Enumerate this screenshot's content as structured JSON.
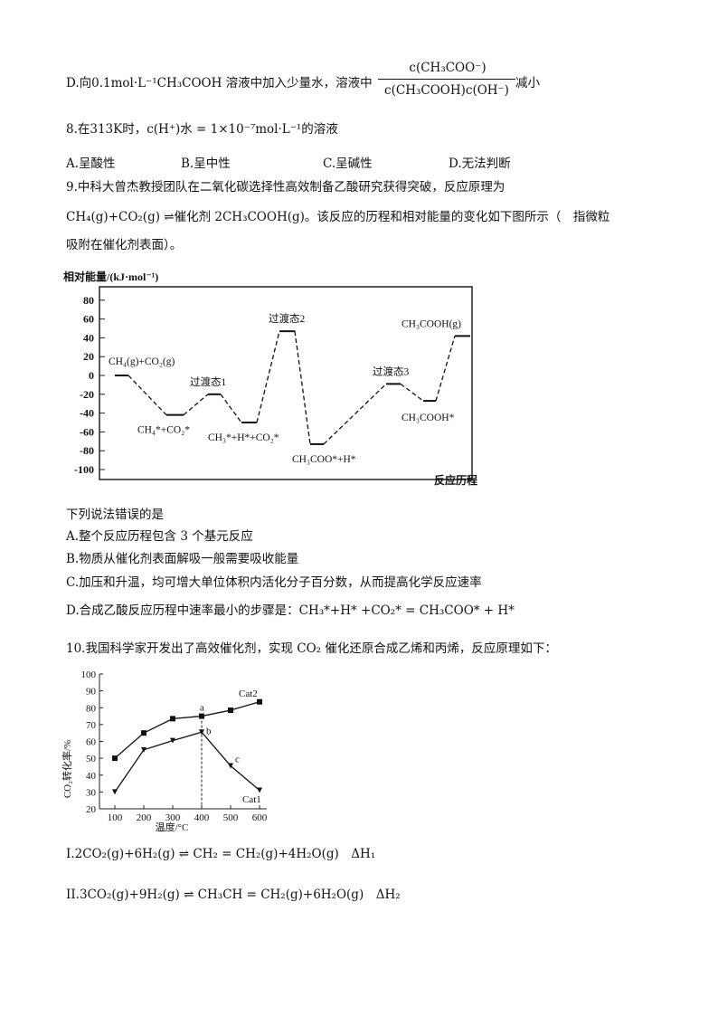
{
  "q7d": {
    "prefix": "D.向0.1mol·L⁻¹CH₃COOH 溶液中加入少量水，溶液中",
    "numerator": "c(CH₃COO⁻)",
    "denominator": "c(CH₃COOH)c(OH⁻)",
    "suffix": "减小"
  },
  "q8": {
    "stem": "8.在313K时，c(H⁺)水 = 1×10⁻⁷mol·L⁻¹的溶液",
    "options": [
      "A.呈酸性",
      "B.呈中性",
      "C.呈碱性",
      "D.无法判断"
    ]
  },
  "q9": {
    "stem": "9.中科大曾杰教授团队在二氧化碳选择性高效制备乙酸研究获得突破，反应原理为",
    "equation": "CH₄(g)+CO₂(g) ⇌催化剂 2CH₃COOH(g)。该反应的历程和相对能量的变化如下图所示（　指微粒",
    "equation_cont": "吸附在催化剂表面）。",
    "question": "下列说法错误的是",
    "options": [
      "A.整个反应历程包含 3 个基元反应",
      "B.物质从催化剂表面解吸一般需要吸收能量",
      "C.加压和升温，均可增大单位体积内活化分子百分数，从而提高化学反应速率",
      "D.合成乙酸反应历程中速率最小的步骤是：CH₃*+H* +CO₂* = CH₃COO* + H*"
    ]
  },
  "q10": {
    "stem": "10.我国科学家开发出了高效催化剂，实现 CO₂ 催化还原合成乙烯和丙烯，反应原理如下：",
    "reactions": [
      "I.2CO₂(g)+6H₂(g) ⇌ CH₂ = CH₂(g)+4H₂O(g)　ΔH₁",
      "II.3CO₂(g)+9H₂(g) ⇌ CH₃CH = CH₂(g)+6H₂O(g)　ΔH₂"
    ]
  },
  "chart_data": [
    {
      "type": "line",
      "ylabel": "相对能量/(kJ·mol⁻¹)",
      "xlabel": "反应历程",
      "ylim": [
        -100,
        80
      ],
      "yticks": [
        "80",
        "60",
        "40",
        "20",
        "0",
        "-20",
        "-40",
        "-60",
        "-80",
        "-100"
      ],
      "levels": [
        {
          "label": "CH₄(g)+CO₂(g)",
          "value": 0
        },
        {
          "label": "CH₄*+CO₂*",
          "value": -42
        },
        {
          "label": "过渡态1",
          "value": -20
        },
        {
          "label": "CH₃*+H*+CO₂*",
          "value": -50
        },
        {
          "label": "过渡态2",
          "value": 47
        },
        {
          "label": "CH₃COO*+H*",
          "value": -73
        },
        {
          "label": "过渡态3",
          "value": -9
        },
        {
          "label": "CH₃COOH*",
          "value": -27
        },
        {
          "label": "CH₃COOH(g)",
          "value": 42
        }
      ]
    },
    {
      "type": "line",
      "xlabel": "温度/°C",
      "ylabel": "CO₂转化率/%",
      "x": [
        100,
        200,
        300,
        400,
        500,
        600
      ],
      "ylim": [
        20,
        100
      ],
      "yticks": [
        "100",
        "90",
        "80",
        "70",
        "60",
        "50",
        "40",
        "30",
        "20"
      ],
      "xticks": [
        "100",
        "200",
        "300",
        "400",
        "500",
        "600"
      ],
      "series": [
        {
          "name": "Cat2",
          "values": [
            50,
            65,
            73.5,
            75,
            78.5,
            83.5
          ]
        },
        {
          "name": "Cat1",
          "values": [
            30,
            55,
            60.5,
            65.5,
            45.5,
            31
          ]
        }
      ],
      "annotations": [
        "a",
        "b",
        "c"
      ]
    }
  ]
}
